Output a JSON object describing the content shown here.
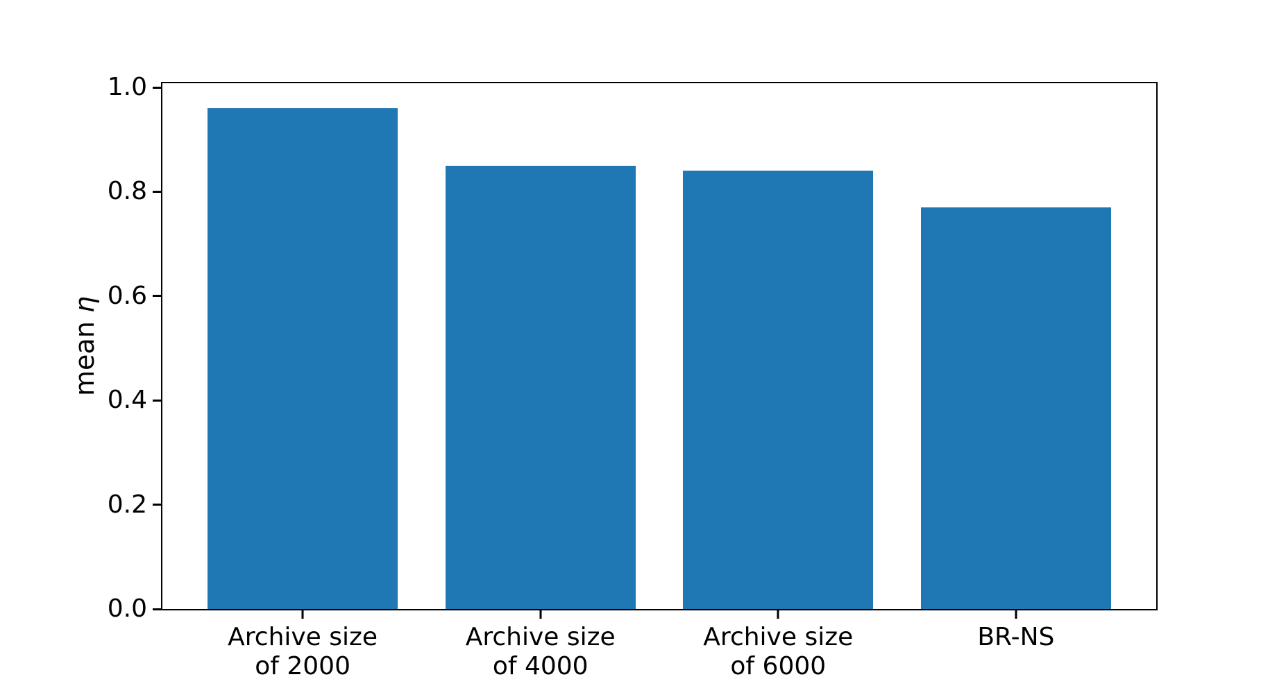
{
  "figure": {
    "background": "#ffffff",
    "ylabel_prefix": "mean ",
    "ylabel_symbol": "η"
  },
  "chart_data": {
    "type": "bar",
    "categories": [
      "Archive size\nof 2000",
      "Archive size\nof 4000",
      "Archive size\nof 6000",
      "BR-NS"
    ],
    "values": [
      0.96,
      0.85,
      0.84,
      0.77
    ],
    "ylabel": "mean η",
    "xlabel": "",
    "yticks": [
      0.0,
      0.2,
      0.4,
      0.6,
      0.8,
      1.0
    ],
    "ytick_labels": [
      "0.0",
      "0.2",
      "0.4",
      "0.6",
      "0.8",
      "1.0"
    ],
    "ylim": [
      0,
      1.008
    ],
    "xlim": [
      -0.59,
      3.59
    ],
    "bar_width": 0.8,
    "bar_color": "#1f77b4",
    "axis_color": "#000000",
    "grid": false,
    "legend": null
  }
}
